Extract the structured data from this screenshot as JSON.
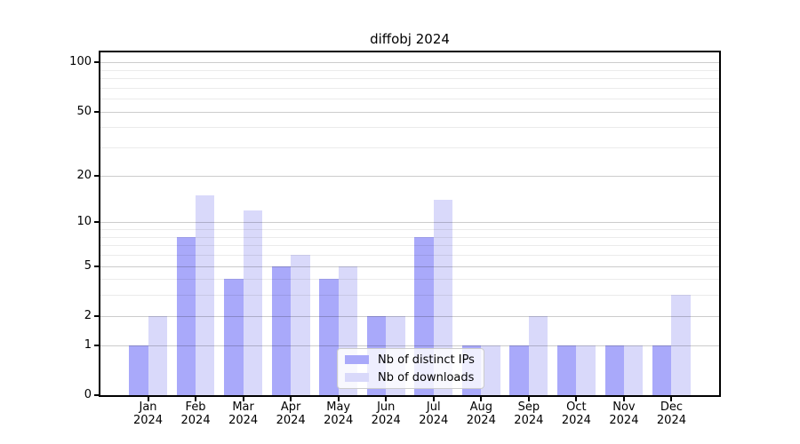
{
  "chart_data": {
    "type": "bar",
    "title": "diffobj 2024",
    "scale": "log1p",
    "year": "2024",
    "categories": [
      "Jan",
      "Feb",
      "Mar",
      "Apr",
      "May",
      "Jun",
      "Jul",
      "Aug",
      "Sep",
      "Oct",
      "Nov",
      "Dec"
    ],
    "series": [
      {
        "name": "Nb of distinct IPs",
        "color": "#a9a9fa",
        "values": [
          1,
          8,
          4,
          5,
          4,
          2,
          8,
          1,
          1,
          1,
          1,
          1
        ]
      },
      {
        "name": "Nb of downloads",
        "color": "#d9d9fa",
        "values": [
          2,
          15,
          12,
          6,
          5,
          2,
          14,
          1,
          2,
          1,
          1,
          3
        ]
      }
    ],
    "ylim": [
      0,
      115
    ],
    "y_major_ticks": [
      0,
      1,
      2,
      5,
      10,
      20,
      50,
      100
    ],
    "y_minor_ticks": [
      3,
      4,
      6,
      7,
      8,
      9,
      30,
      40,
      60,
      70,
      80,
      90
    ],
    "grid": "on",
    "legend_position": "lower-center-inside",
    "bar_group_width_fraction": 0.8
  },
  "colors": {
    "axis": "#000000",
    "major_grid": "rgba(0,0,0,0.20)",
    "minor_grid": "rgba(0,0,0,0.08)",
    "legend_border": "#cccccc",
    "legend_bg": "rgba(255,255,255,0.8)",
    "background": "#ffffff"
  }
}
